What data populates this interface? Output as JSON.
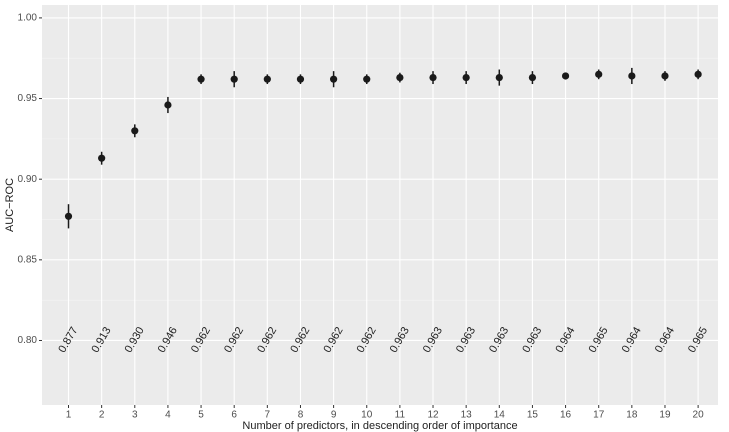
{
  "chart_data": {
    "type": "errorpoint",
    "x_label": "Number of predictors, in descending order of importance",
    "y_label": "AUC−ROC",
    "x": [
      1,
      2,
      3,
      4,
      5,
      6,
      7,
      8,
      9,
      10,
      11,
      12,
      13,
      14,
      15,
      16,
      17,
      18,
      19,
      20
    ],
    "series": [
      {
        "color": "#1a1a1a",
        "values": [
          0.877,
          0.913,
          0.93,
          0.946,
          0.962,
          0.962,
          0.962,
          0.962,
          0.962,
          0.962,
          0.963,
          0.963,
          0.963,
          0.963,
          0.963,
          0.964,
          0.965,
          0.964,
          0.964,
          0.965
        ],
        "value_labels": [
          "0.877",
          "0.913",
          "0.930",
          "0.946",
          "0.962",
          "0.962",
          "0.962",
          "0.962",
          "0.962",
          "0.962",
          "0.963",
          "0.963",
          "0.963",
          "0.963",
          "0.963",
          "0.964",
          "0.965",
          "0.964",
          "0.964",
          "0.965"
        ],
        "errors": [
          0.0075,
          0.004,
          0.004,
          0.005,
          0.003,
          0.005,
          0.003,
          0.003,
          0.005,
          0.003,
          0.003,
          0.004,
          0.004,
          0.005,
          0.004,
          0.002,
          0.003,
          0.005,
          0.003,
          0.003
        ]
      }
    ],
    "xlim": [
      0.2,
      20.6
    ],
    "xticks": [
      1,
      2,
      3,
      4,
      5,
      6,
      7,
      8,
      9,
      10,
      11,
      12,
      13,
      14,
      15,
      16,
      17,
      18,
      19,
      20
    ],
    "ylim": [
      0.76,
      1.008
    ],
    "yticks": [
      {
        "value": 0.8,
        "label": "0.80"
      },
      {
        "value": 0.85,
        "label": "0.85"
      },
      {
        "value": 0.9,
        "label": "0.90"
      },
      {
        "value": 0.95,
        "label": "0.95"
      },
      {
        "value": 1.0,
        "label": "1.00"
      }
    ],
    "grid": true
  }
}
